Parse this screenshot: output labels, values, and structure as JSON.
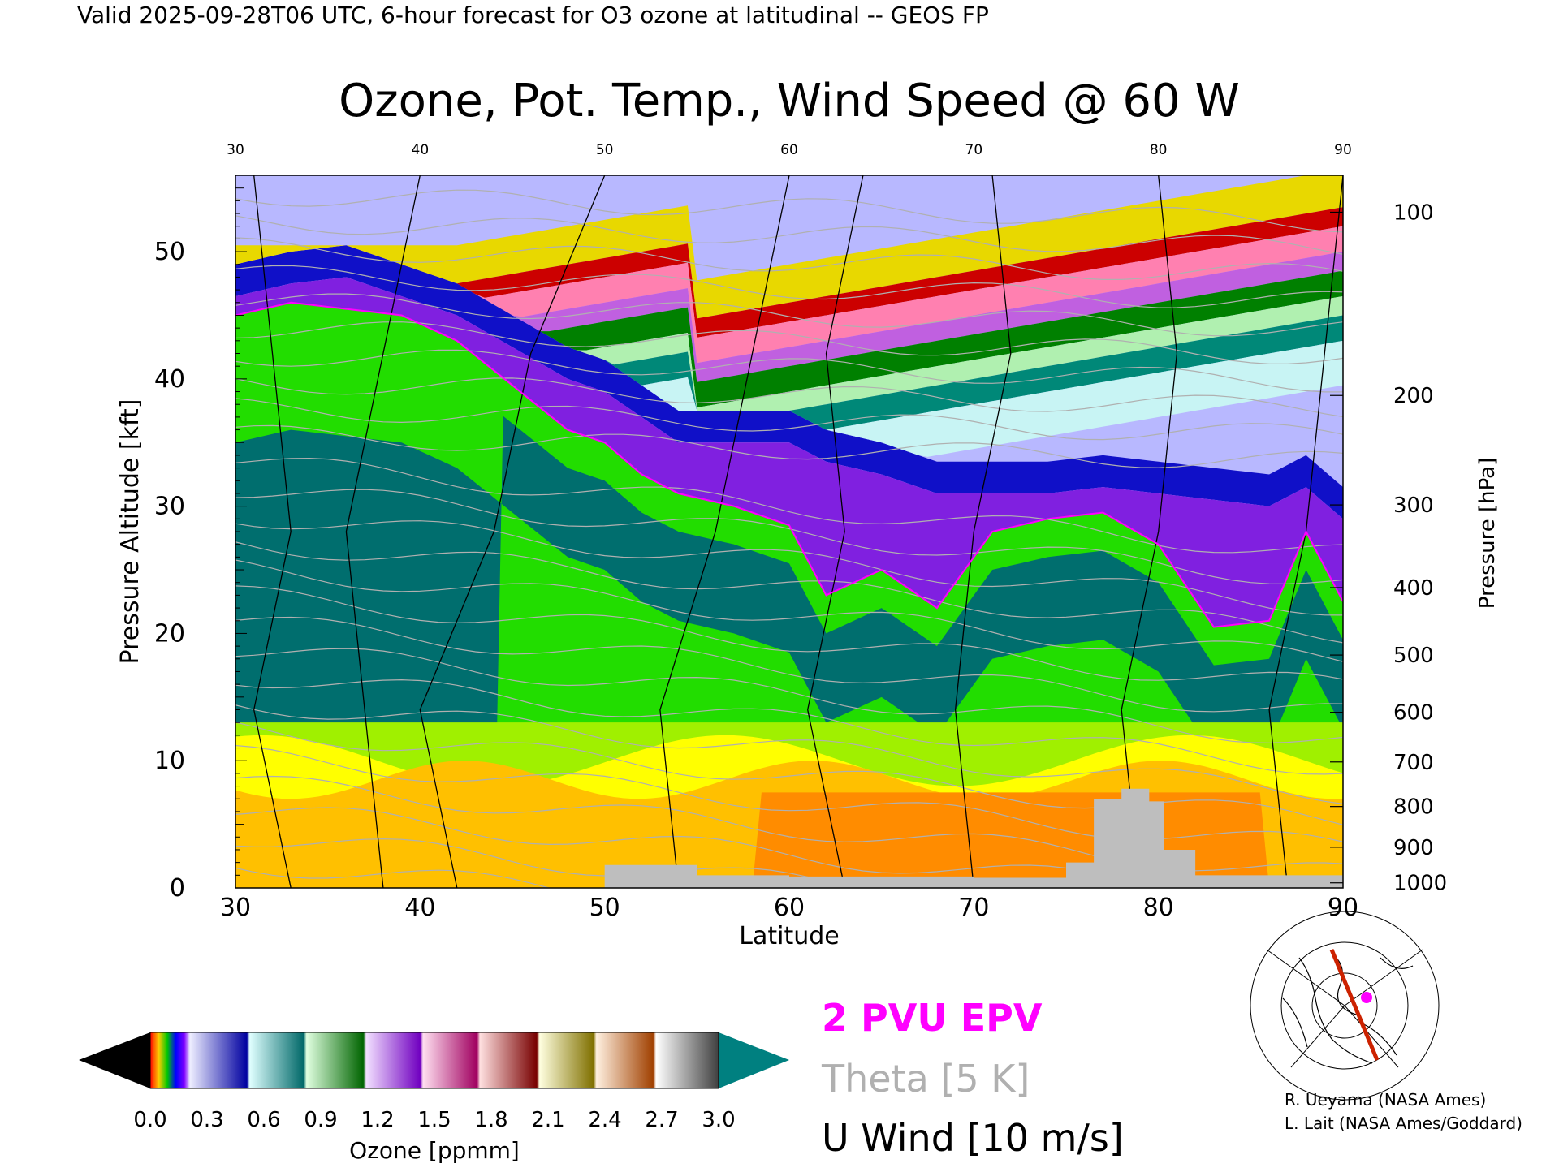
{
  "header": "Valid 2025-09-28T06 UTC, 6-hour forecast for O3 ozone at latitudinal -- GEOS FP",
  "chart_data": {
    "type": "heatmap",
    "title": "Ozone, Pot. Temp., Wind Speed @ 60 W",
    "xlabel": "Latitude",
    "ylabel": "Pressure Altitude [kft]",
    "ylabel_right": "Pressure [hPa]",
    "xlim": [
      30,
      90
    ],
    "ylim": [
      0,
      56
    ],
    "x_ticks": [
      "30",
      "40",
      "50",
      "60",
      "70",
      "80",
      "90"
    ],
    "y_ticks": [
      "0",
      "10",
      "20",
      "30",
      "40",
      "50"
    ],
    "pressure_ticks": [
      {
        "label": "100",
        "kft": 53.1
      },
      {
        "label": "200",
        "kft": 38.7
      },
      {
        "label": "300",
        "kft": 30.1
      },
      {
        "label": "400",
        "kft": 23.6
      },
      {
        "label": "500",
        "kft": 18.3
      },
      {
        "label": "600",
        "kft": 13.8
      },
      {
        "label": "700",
        "kft": 9.9
      },
      {
        "label": "800",
        "kft": 6.4
      },
      {
        "label": "900",
        "kft": 3.2
      },
      {
        "label": "1000",
        "kft": 0.4
      }
    ],
    "ozone_tropopause_kft": [
      {
        "lat": 30,
        "top": 46.5,
        "tropo": 45.0
      },
      {
        "lat": 33,
        "top": 47.5,
        "tropo": 46.0
      },
      {
        "lat": 36,
        "top": 48.0,
        "tropo": 45.5
      },
      {
        "lat": 39,
        "top": 46.5,
        "tropo": 45.0
      },
      {
        "lat": 42,
        "top": 45.0,
        "tropo": 43.0
      },
      {
        "lat": 45,
        "top": 42.5,
        "tropo": 39.5
      },
      {
        "lat": 48,
        "top": 40.0,
        "tropo": 36.0
      },
      {
        "lat": 50,
        "top": 39.0,
        "tropo": 35.0
      },
      {
        "lat": 52,
        "top": 37.0,
        "tropo": 32.5
      },
      {
        "lat": 54,
        "top": 35.0,
        "tropo": 31.0
      },
      {
        "lat": 57,
        "top": 35.0,
        "tropo": 30.0
      },
      {
        "lat": 60,
        "top": 35.0,
        "tropo": 28.5
      },
      {
        "lat": 62,
        "top": 33.5,
        "tropo": 23.0
      },
      {
        "lat": 65,
        "top": 32.5,
        "tropo": 25.0
      },
      {
        "lat": 68,
        "top": 31.0,
        "tropo": 22.0
      },
      {
        "lat": 71,
        "top": 31.0,
        "tropo": 28.0
      },
      {
        "lat": 74,
        "top": 31.0,
        "tropo": 29.0
      },
      {
        "lat": 77,
        "top": 31.5,
        "tropo": 29.5
      },
      {
        "lat": 80,
        "top": 31.0,
        "tropo": 27.0
      },
      {
        "lat": 83,
        "top": 30.5,
        "tropo": 20.5
      },
      {
        "lat": 86,
        "top": 30.0,
        "tropo": 21.0
      },
      {
        "lat": 88,
        "top": 31.5,
        "tropo": 28.0
      },
      {
        "lat": 90,
        "top": 29.0,
        "tropo": 22.5
      }
    ],
    "surface_mask_kft": [
      {
        "lat": 50,
        "h": 1.8
      },
      {
        "lat": 55,
        "h": 1.0
      },
      {
        "lat": 60,
        "h": 0.9
      },
      {
        "lat": 70,
        "h": 0.8
      },
      {
        "lat": 75,
        "h": 2.0
      },
      {
        "lat": 76.5,
        "h": 7.0
      },
      {
        "lat": 78,
        "h": 7.8
      },
      {
        "lat": 79.5,
        "h": 6.8
      },
      {
        "lat": 80.3,
        "h": 3.0
      },
      {
        "lat": 82,
        "h": 1.0
      },
      {
        "lat": 90,
        "h": 0.8
      }
    ],
    "legend": {
      "epv": "2 PVU EPV",
      "theta": "Theta [5 K]",
      "wind": "U Wind [10 m/s]"
    },
    "colorbar": {
      "label": "Ozone [ppmm]",
      "ticks": [
        "0.0",
        "0.3",
        "0.6",
        "0.9",
        "1.2",
        "1.5",
        "1.8",
        "2.1",
        "2.4",
        "2.7",
        "3.0"
      ],
      "min": 0.0,
      "max": 3.0
    },
    "colors": {
      "epv": "#ff00ff",
      "theta": "#b0b0b0",
      "wind": "#000000",
      "surface": "#bebebe",
      "over": "#008080",
      "under": "#000000"
    }
  },
  "credits": [
    "R. Ueyama (NASA Ames)",
    "L. Lait (NASA Ames/Goddard)"
  ]
}
